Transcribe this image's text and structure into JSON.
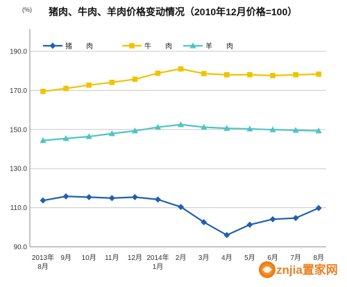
{
  "title": "猪肉、牛肉、羊肉价格变动情况（2010年12月价格=100）",
  "unit_label": "(%)",
  "watermark": "znjia置家网",
  "chart_data": {
    "type": "line",
    "title": "猪肉、牛肉、羊肉价格变动情况（2010年12月价格=100）",
    "xlabel": "",
    "ylabel": "(%)",
    "ylim": [
      90,
      190
    ],
    "yticks": [
      "90.0",
      "110.0",
      "130.0",
      "150.0",
      "170.0",
      "190.0"
    ],
    "grid": true,
    "legend_position": "top-left",
    "categories": [
      [
        "2013年",
        "8月"
      ],
      [
        "9月"
      ],
      [
        "10月"
      ],
      [
        "11月"
      ],
      [
        "12月"
      ],
      [
        "2014年",
        "1月"
      ],
      [
        "2月"
      ],
      [
        "3月"
      ],
      [
        "4月"
      ],
      [
        "5月"
      ],
      [
        "6月"
      ],
      [
        "7月"
      ],
      [
        "8月"
      ]
    ],
    "series": [
      {
        "name": "猪　　肉",
        "color": "#1f5fb4",
        "marker": "diamond",
        "values": [
          113.7,
          115.8,
          115.4,
          114.9,
          115.4,
          114.2,
          110.4,
          102.6,
          96.0,
          101.3,
          104.1,
          104.7,
          109.8
        ]
      },
      {
        "name": "牛　　肉",
        "color": "#f2c200",
        "marker": "square",
        "values": [
          169.5,
          171.0,
          172.7,
          174.1,
          175.7,
          178.8,
          181.0,
          178.6,
          178.0,
          178.0,
          177.6,
          178.0,
          178.3
        ]
      },
      {
        "name": "羊　　肉",
        "color": "#4cc4c4",
        "marker": "triangle",
        "values": [
          144.4,
          145.4,
          146.4,
          147.9,
          149.3,
          151.2,
          152.5,
          151.2,
          150.6,
          150.3,
          149.9,
          149.6,
          149.3
        ]
      }
    ]
  }
}
